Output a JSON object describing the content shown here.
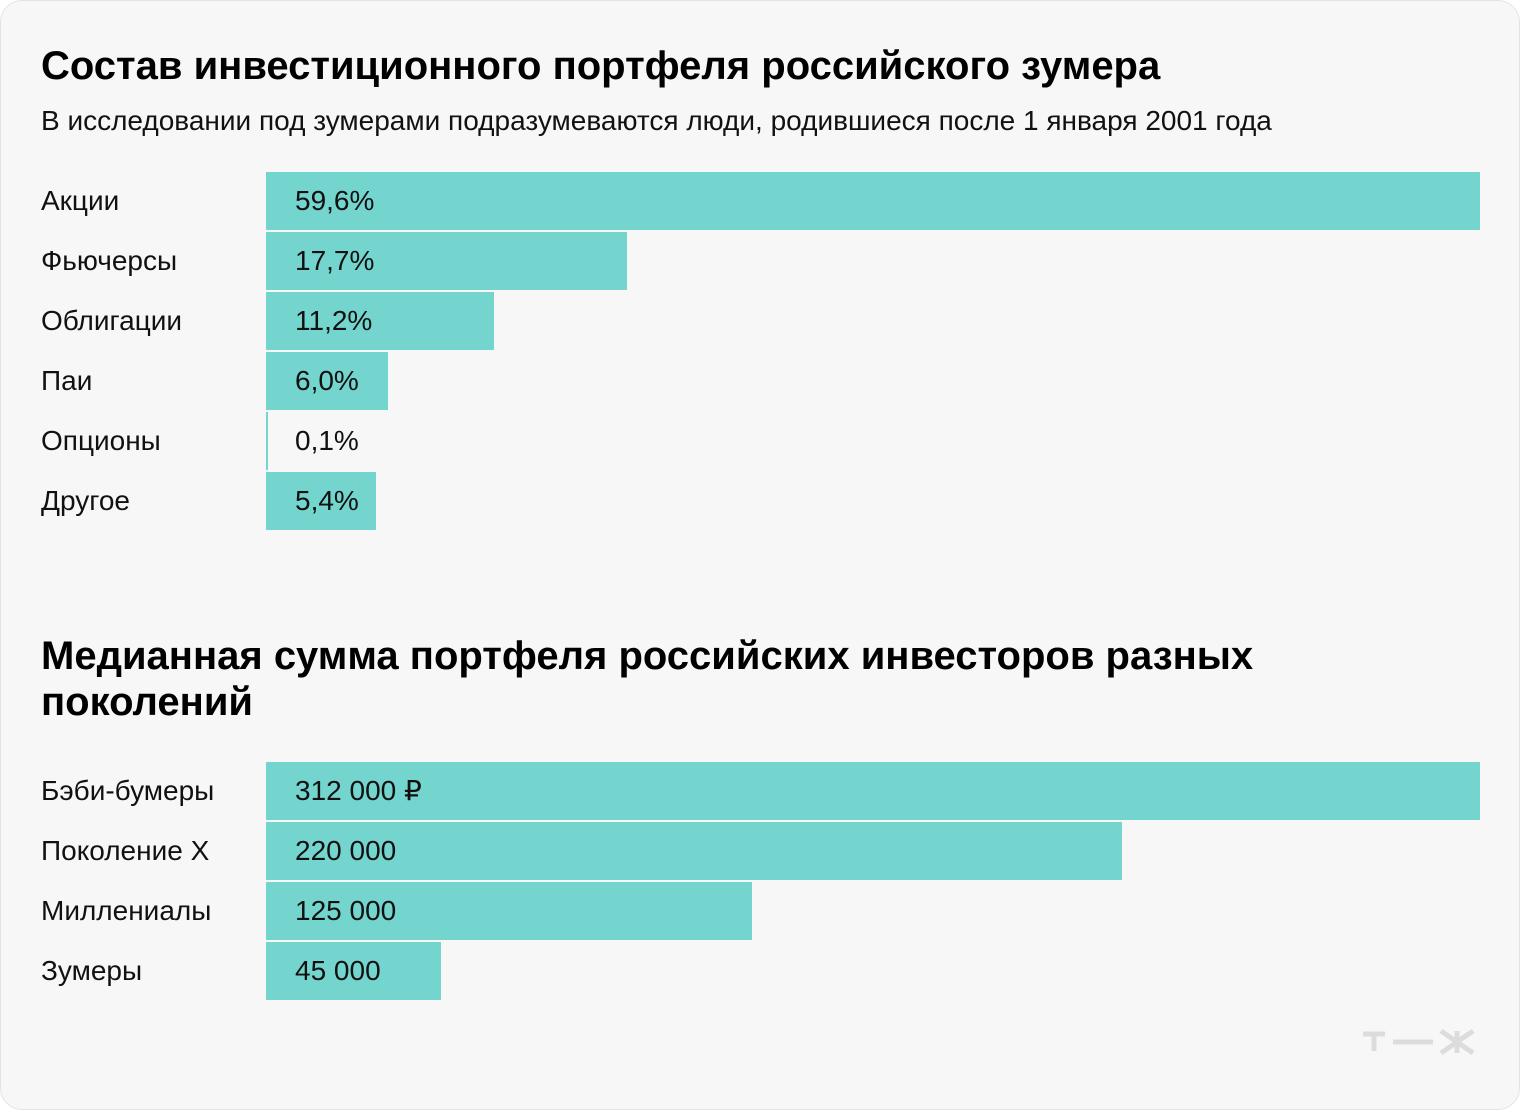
{
  "chart_data": [
    {
      "type": "bar",
      "orientation": "horizontal",
      "title": "Состав инвестиционного портфеля российского зумера",
      "subtitle": "В исследовании под зумерами подразумеваются люди, родившиеся после 1 января 2001 года",
      "categories": [
        "Акции",
        "Фьючерсы",
        "Облигации",
        "Паи",
        "Опционы",
        "Другое"
      ],
      "values": [
        59.6,
        17.7,
        11.2,
        6.0,
        0.1,
        5.4
      ],
      "value_labels": [
        "59,6%",
        "17,7%",
        "11,2%",
        "6,0%",
        "0,1%",
        "5,4%"
      ],
      "xlim": [
        0,
        59.6
      ],
      "grid": false,
      "bar_color": "#74d5cf"
    },
    {
      "type": "bar",
      "orientation": "horizontal",
      "title": "Медианная сумма портфеля российских инвесторов разных поколений",
      "categories": [
        "Бэби-бумеры",
        "Поколение X",
        "Миллениалы",
        "Зумеры"
      ],
      "values": [
        312000,
        220000,
        125000,
        45000
      ],
      "value_labels": [
        "312 000 ₽",
        "220 000",
        "125 000",
        "45 000"
      ],
      "xlim": [
        0,
        312000
      ],
      "grid": false,
      "bar_color": "#74d5cf"
    }
  ],
  "logo": {
    "icon": "tzh-logo-icon",
    "color": "#dcdcdc"
  }
}
